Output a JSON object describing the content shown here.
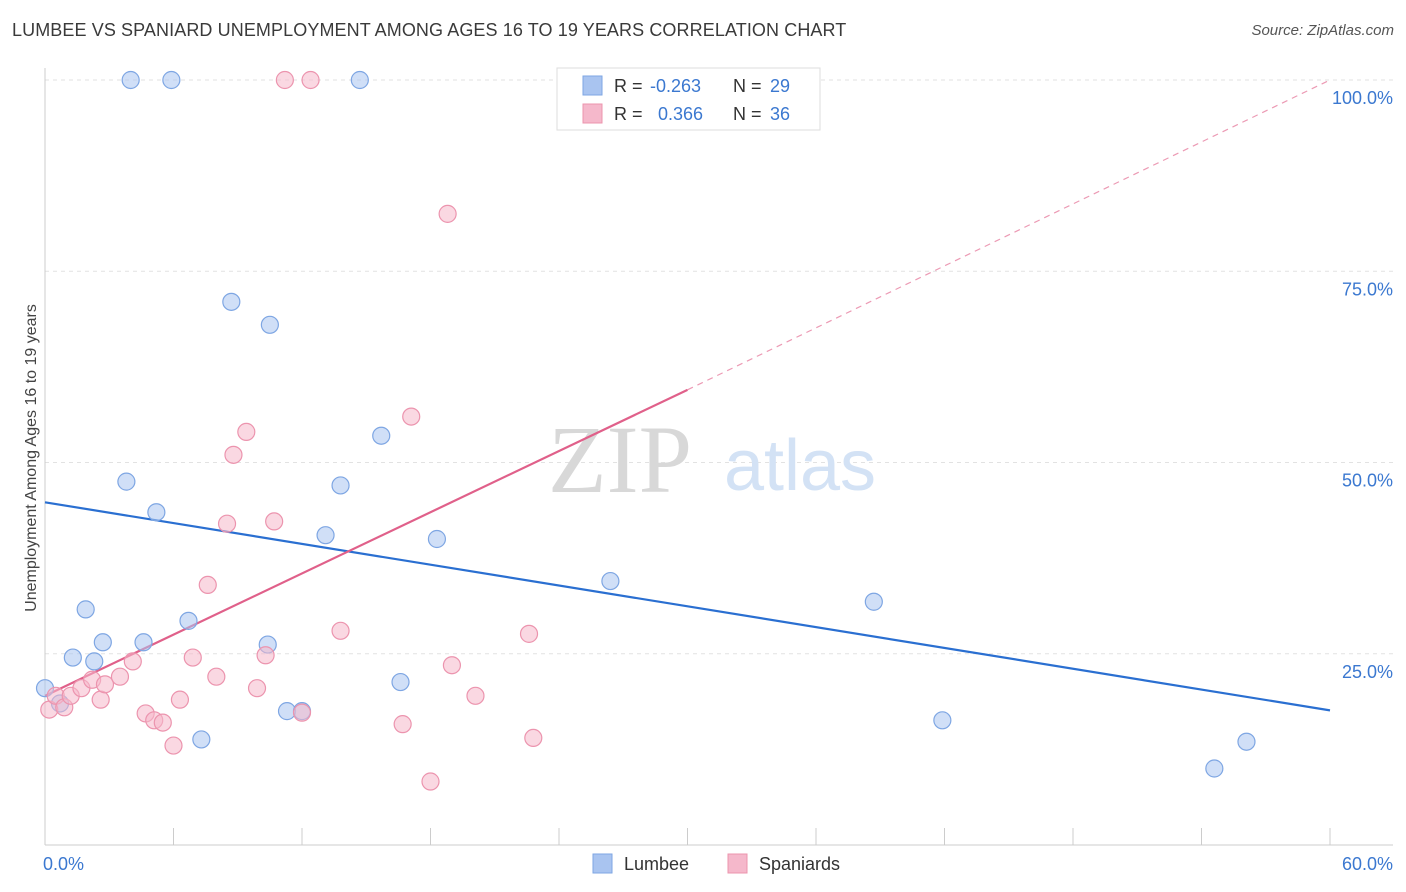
{
  "header": {
    "title": "LUMBEE VS SPANIARD UNEMPLOYMENT AMONG AGES 16 TO 19 YEARS CORRELATION CHART",
    "source": "Source: ZipAtlas.com"
  },
  "watermark": {
    "zip": "ZIP",
    "atlas": "atlas"
  },
  "colors": {
    "lumbee_fill": "#a9c4f0",
    "lumbee_stroke": "#7ea6e3",
    "lumbee_line": "#2a6fd1",
    "spaniard_fill": "#f5b8cb",
    "spaniard_stroke": "#ec94ae",
    "spaniard_line": "#e0608a",
    "axis_text": "#3b78d0"
  },
  "legend_box": {
    "rows": [
      {
        "r_label": "R =",
        "r_value": "-0.263",
        "n_label": "N =",
        "n_value": "29"
      },
      {
        "r_label": "R =",
        "r_value": "0.366",
        "n_label": "N =",
        "n_value": "36"
      }
    ]
  },
  "chart_data": {
    "type": "scatter",
    "title": "LUMBEE VS SPANIARD UNEMPLOYMENT AMONG AGES 16 TO 19 YEARS CORRELATION CHART",
    "xlabel": "",
    "ylabel": "Unemployment Among Ages 16 to 19 years",
    "xlim": [
      0,
      60
    ],
    "ylim": [
      0,
      100
    ],
    "x_tick_labels": [
      "0.0%",
      "60.0%"
    ],
    "y_tick_labels": [
      "25.0%",
      "50.0%",
      "75.0%",
      "100.0%"
    ],
    "y_ticks": [
      25,
      50,
      75,
      100
    ],
    "grid": true,
    "legend_position": "bottom",
    "series": [
      {
        "name": "Lumbee",
        "r": -0.263,
        "n": 29,
        "points": [
          [
            0.0,
            20.5
          ],
          [
            0.7,
            18.5
          ],
          [
            1.3,
            24.5
          ],
          [
            1.9,
            30.8
          ],
          [
            2.3,
            24.0
          ],
          [
            2.7,
            26.5
          ],
          [
            3.8,
            47.5
          ],
          [
            4.6,
            26.5
          ],
          [
            5.2,
            43.5
          ],
          [
            6.7,
            29.3
          ],
          [
            7.3,
            13.8
          ],
          [
            8.7,
            71.0
          ],
          [
            10.5,
            68.0
          ],
          [
            10.4,
            26.2
          ],
          [
            11.3,
            17.5
          ],
          [
            12.0,
            17.5
          ],
          [
            13.1,
            40.5
          ],
          [
            13.8,
            47.0
          ],
          [
            15.7,
            53.5
          ],
          [
            16.6,
            21.3
          ],
          [
            18.3,
            40.0
          ],
          [
            26.4,
            34.5
          ],
          [
            38.7,
            31.8
          ],
          [
            41.9,
            16.3
          ],
          [
            54.6,
            10.0
          ],
          [
            56.1,
            13.5
          ],
          [
            4.0,
            100.0
          ],
          [
            5.9,
            100.0
          ],
          [
            14.7,
            100.0
          ]
        ],
        "trend": {
          "x": [
            0,
            60
          ],
          "y": [
            44.8,
            17.6
          ]
        }
      },
      {
        "name": "Spaniards",
        "r": 0.366,
        "n": 36,
        "points": [
          [
            0.2,
            17.7
          ],
          [
            0.5,
            19.5
          ],
          [
            0.9,
            18.0
          ],
          [
            1.2,
            19.5
          ],
          [
            1.7,
            20.5
          ],
          [
            2.2,
            21.6
          ],
          [
            2.6,
            19.0
          ],
          [
            2.8,
            21.0
          ],
          [
            3.5,
            22.0
          ],
          [
            4.1,
            24.0
          ],
          [
            4.7,
            17.2
          ],
          [
            5.1,
            16.3
          ],
          [
            5.5,
            16.0
          ],
          [
            6.0,
            13.0
          ],
          [
            6.3,
            19.0
          ],
          [
            6.9,
            24.5
          ],
          [
            7.6,
            34.0
          ],
          [
            8.0,
            22.0
          ],
          [
            8.5,
            42.0
          ],
          [
            8.8,
            51.0
          ],
          [
            9.4,
            54.0
          ],
          [
            9.9,
            20.5
          ],
          [
            10.3,
            24.8
          ],
          [
            10.7,
            42.3
          ],
          [
            12.0,
            17.3
          ],
          [
            13.8,
            28.0
          ],
          [
            16.7,
            15.8
          ],
          [
            17.1,
            56.0
          ],
          [
            18.0,
            8.3
          ],
          [
            18.8,
            82.5
          ],
          [
            19.0,
            23.5
          ],
          [
            20.1,
            19.5
          ],
          [
            22.6,
            27.6
          ],
          [
            22.8,
            14.0
          ],
          [
            11.2,
            100.0
          ],
          [
            12.4,
            100.0
          ]
        ],
        "trend": {
          "x": [
            0,
            30
          ],
          "y": [
            19.5,
            59.5
          ]
        },
        "trend_extended": {
          "x": [
            30,
            60
          ],
          "y": [
            59.5,
            100.0
          ]
        }
      }
    ]
  }
}
